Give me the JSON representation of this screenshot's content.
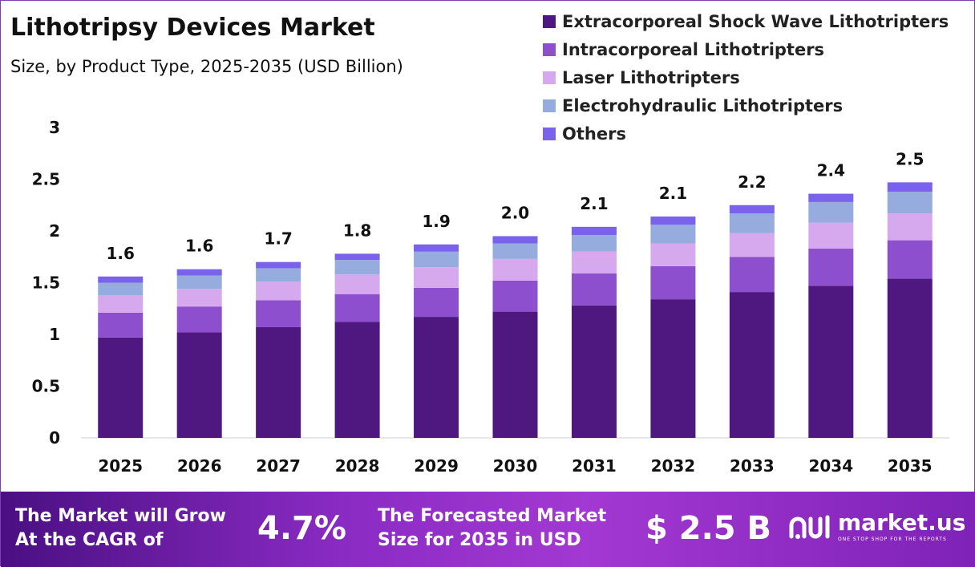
{
  "header": {
    "title": "Lithotripsy Devices Market",
    "subtitle": "Size, by Product Type, 2025-2035 (USD Billion)"
  },
  "colors": {
    "Extracorporeal Shock Wave Lithotripters": "#4e1880",
    "Intracorporeal Lithotripters": "#8e4fce",
    "Laser Lithotripters": "#d6a9ee",
    "Electrohydraulic Lithotripters": "#96acde",
    "Others": "#7a62ec"
  },
  "chart_data": {
    "type": "bar",
    "stacked": true,
    "categories": [
      "2025",
      "2026",
      "2027",
      "2028",
      "2029",
      "2030",
      "2031",
      "2032",
      "2033",
      "2034",
      "2035"
    ],
    "series": [
      {
        "name": "Extracorporeal Shock Wave Lithotripters",
        "values": [
          0.97,
          1.02,
          1.07,
          1.12,
          1.17,
          1.22,
          1.28,
          1.34,
          1.41,
          1.47,
          1.54
        ]
      },
      {
        "name": "Intracorporeal Lithotripters",
        "values": [
          0.24,
          0.25,
          0.26,
          0.27,
          0.28,
          0.3,
          0.31,
          0.32,
          0.34,
          0.36,
          0.37
        ]
      },
      {
        "name": "Laser Lithotripters",
        "values": [
          0.17,
          0.17,
          0.18,
          0.19,
          0.2,
          0.21,
          0.21,
          0.22,
          0.23,
          0.25,
          0.26
        ]
      },
      {
        "name": "Electrohydraulic Lithotripters",
        "values": [
          0.12,
          0.13,
          0.13,
          0.14,
          0.15,
          0.15,
          0.16,
          0.18,
          0.19,
          0.2,
          0.21
        ]
      },
      {
        "name": "Others",
        "values": [
          0.06,
          0.06,
          0.06,
          0.06,
          0.07,
          0.07,
          0.08,
          0.08,
          0.08,
          0.08,
          0.09
        ]
      }
    ],
    "totals": [
      "1.6",
      "1.6",
      "1.7",
      "1.8",
      "1.9",
      "2.0",
      "2.1",
      "2.1",
      "2.2",
      "2.4",
      "2.5"
    ],
    "y_ticks": [
      "0",
      "0.5",
      "1",
      "1.5",
      "2",
      "2.5",
      "3"
    ],
    "ylim": [
      0,
      3
    ],
    "grid": false,
    "legend_position": "top-right"
  },
  "footer": {
    "cagr_text_line1": "The Market will Grow",
    "cagr_text_line2": "At the CAGR of",
    "cagr_value": "4.7%",
    "forecast_text_line1": "The Forecasted Market",
    "forecast_text_line2": "Size for 2035 in USD",
    "forecast_value": "$ 2.5 B",
    "logo_name": "market.us",
    "logo_tagline": "ONE STOP SHOP FOR THE REPORTS"
  }
}
